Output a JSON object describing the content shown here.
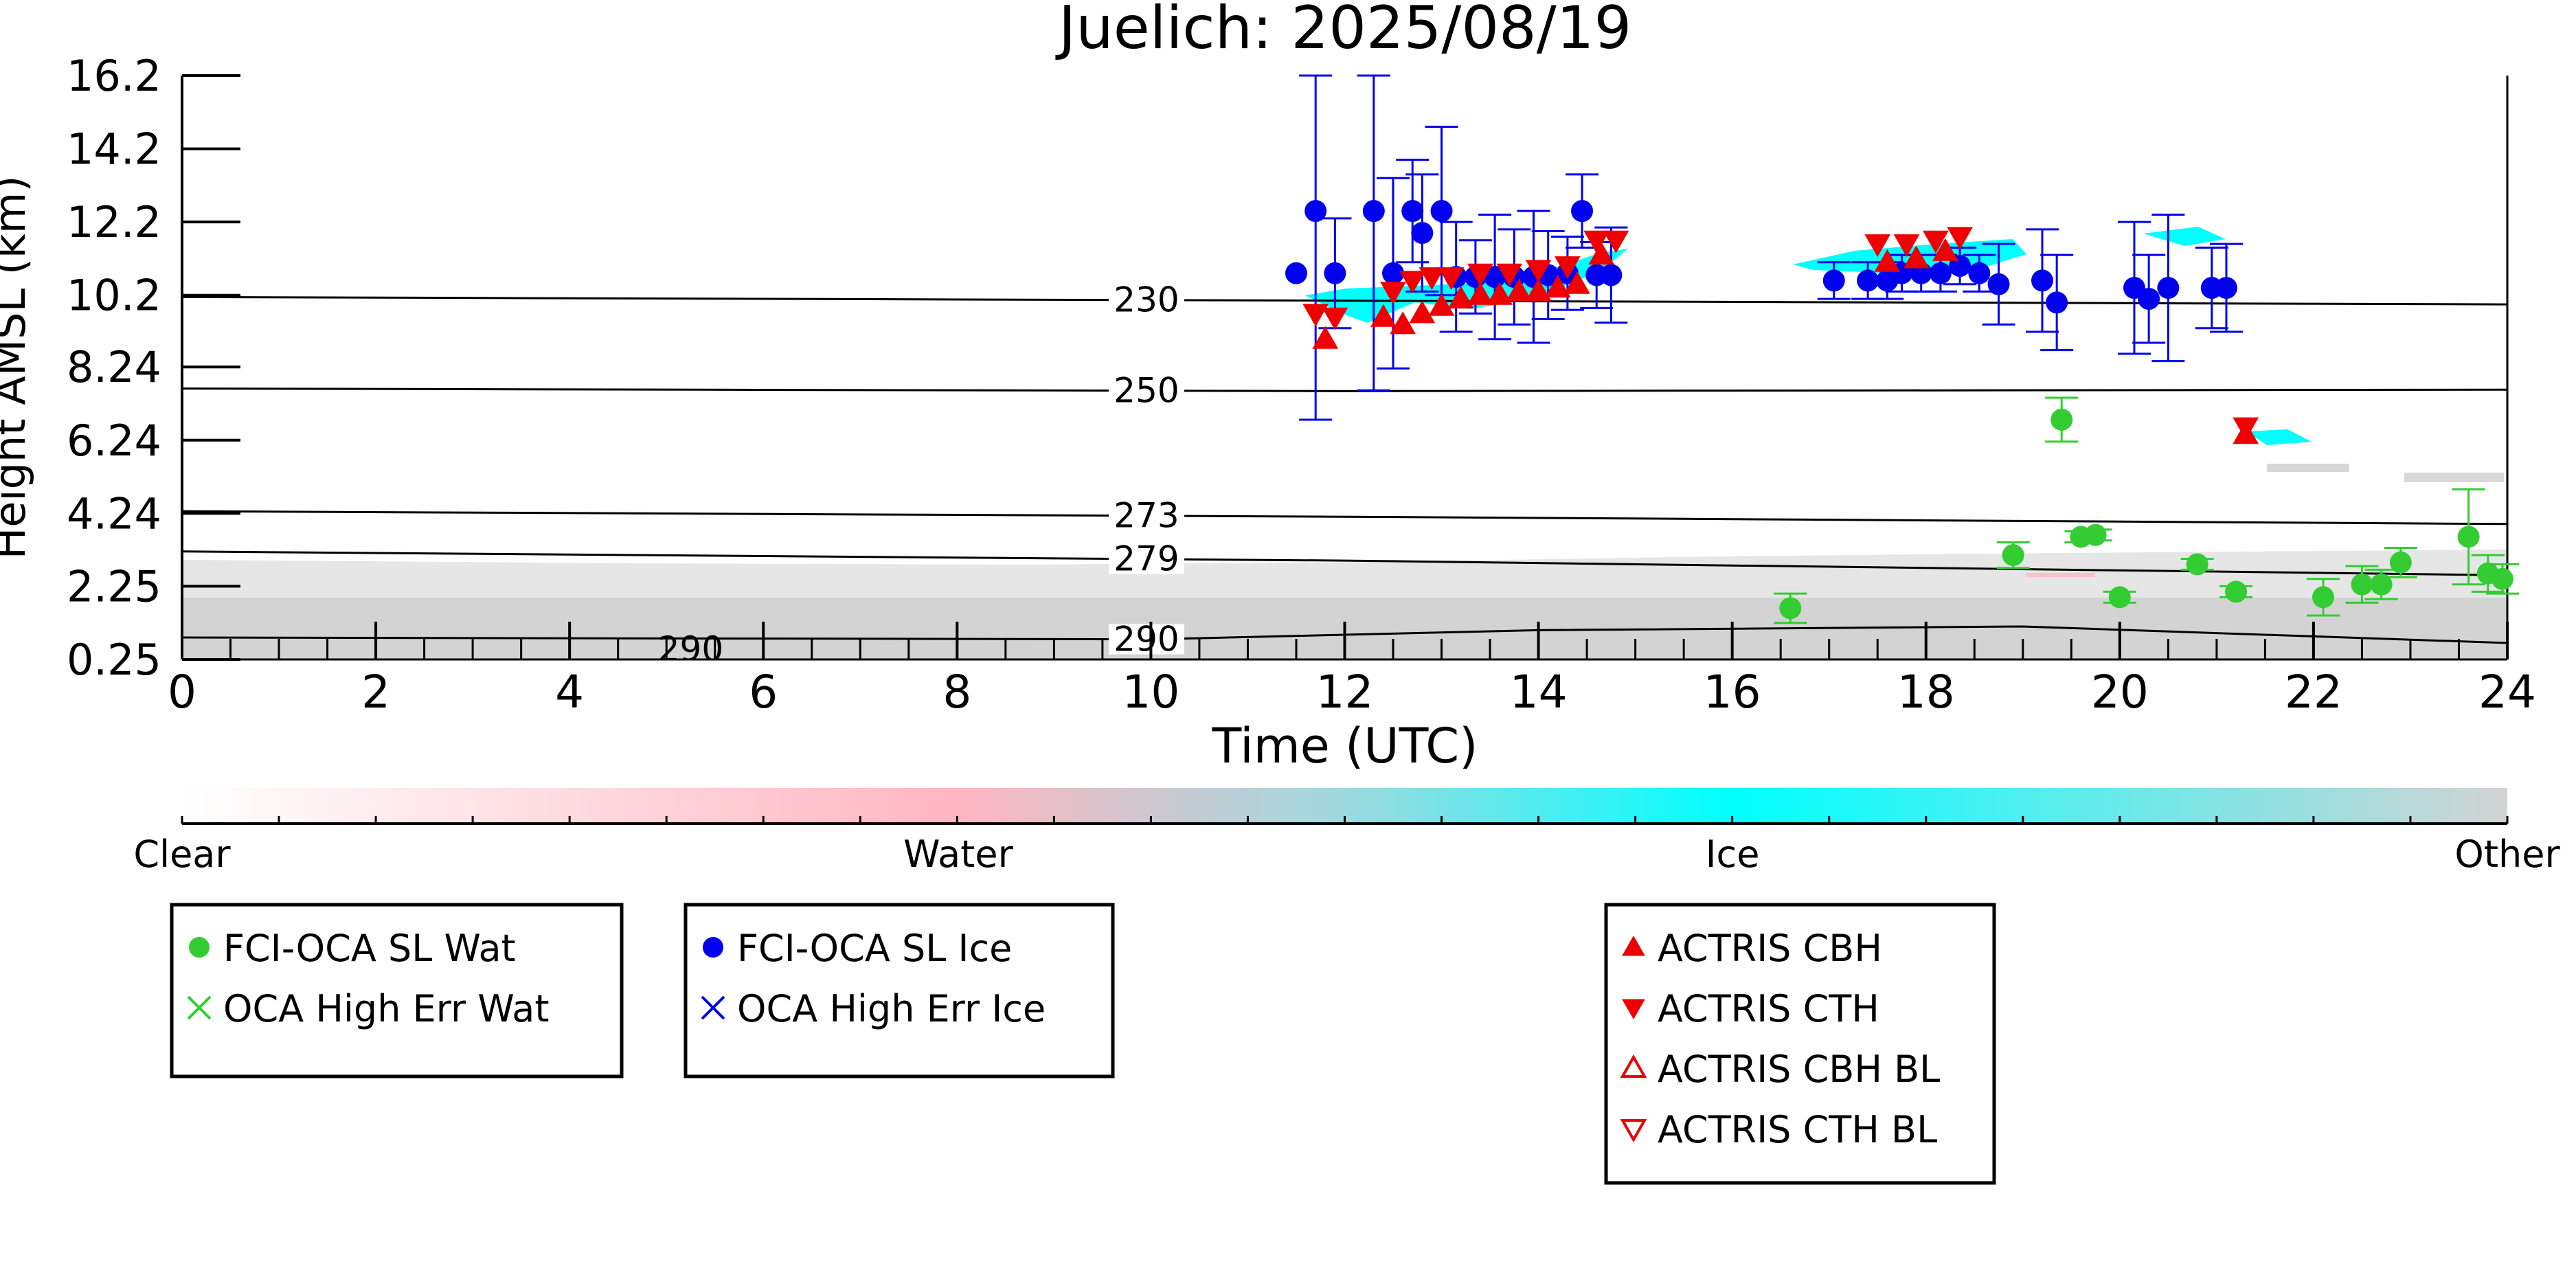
{
  "chart_data": {
    "type": "scatter",
    "title": "Juelich: 2025/08/19",
    "xlabel": "Time (UTC)",
    "ylabel": "Height AMSL (km)",
    "xlim": [
      0,
      24
    ],
    "ylim": [
      0.25,
      16.2
    ],
    "x_ticks": [
      "0",
      "2",
      "4",
      "6",
      "8",
      "10",
      "12",
      "14",
      "16",
      "18",
      "20",
      "22",
      "24"
    ],
    "y_ticks": [
      "0.25",
      "2.25",
      "4.24",
      "6.24",
      "8.24",
      "10.2",
      "12.2",
      "14.2",
      "16.2"
    ],
    "grid": false,
    "colorbar": {
      "labels": [
        "Clear",
        "Water",
        "Ice",
        "Other"
      ],
      "colors": [
        "#ffffff",
        "#ffb6c1",
        "#00ffff",
        "#d3d3d3"
      ]
    },
    "isotherms": [
      {
        "label": "230",
        "points": [
          [
            0,
            10.15
          ],
          [
            12,
            10.05
          ],
          [
            24,
            9.95
          ]
        ]
      },
      {
        "label": "250",
        "points": [
          [
            0,
            7.65
          ],
          [
            12,
            7.58
          ],
          [
            24,
            7.62
          ]
        ]
      },
      {
        "label": "273",
        "points": [
          [
            0,
            4.3
          ],
          [
            12,
            4.15
          ],
          [
            24,
            3.95
          ]
        ]
      },
      {
        "label": "279",
        "points": [
          [
            0,
            3.2
          ],
          [
            12,
            2.95
          ],
          [
            24,
            2.55
          ]
        ]
      },
      {
        "label": "290",
        "points": [
          [
            0,
            0.85
          ],
          [
            10,
            0.8
          ],
          [
            14,
            1.05
          ],
          [
            19,
            1.15
          ],
          [
            24,
            0.7
          ]
        ]
      }
    ],
    "iso_extra_label": "290",
    "series": [
      {
        "name": "FCI-OCA SL Wat",
        "marker": "circle",
        "color": "#33cc33",
        "points": [
          {
            "x": 16.6,
            "y": 1.65,
            "err": 0.4
          },
          {
            "x": 18.9,
            "y": 3.1,
            "err": 0.35
          },
          {
            "x": 19.4,
            "y": 6.8,
            "err": 0.6
          },
          {
            "x": 19.6,
            "y": 3.6,
            "err": 0.15
          },
          {
            "x": 19.75,
            "y": 3.65,
            "err": 0.15
          },
          {
            "x": 20.0,
            "y": 1.95,
            "err": 0.15
          },
          {
            "x": 20.8,
            "y": 2.85,
            "err": 0.15
          },
          {
            "x": 21.2,
            "y": 2.1,
            "err": 0.15
          },
          {
            "x": 22.1,
            "y": 1.95,
            "err": 0.5
          },
          {
            "x": 22.5,
            "y": 2.3,
            "err": 0.5
          },
          {
            "x": 22.7,
            "y": 2.3,
            "err": 0.4
          },
          {
            "x": 22.9,
            "y": 2.9,
            "err": 0.4
          },
          {
            "x": 23.6,
            "y": 3.6,
            "err": 1.3
          },
          {
            "x": 23.8,
            "y": 2.6,
            "err": 0.5
          },
          {
            "x": 23.95,
            "y": 2.45,
            "err": 0.4
          }
        ]
      },
      {
        "name": "OCA High Err Wat",
        "marker": "x",
        "color": "#33cc33",
        "points": []
      },
      {
        "name": "FCI-OCA SL Ice",
        "marker": "circle",
        "color": "#0000ee",
        "points": [
          {
            "x": 11.5,
            "y": 10.8,
            "err": 0.0
          },
          {
            "x": 11.7,
            "y": 12.5,
            "err": 5.7
          },
          {
            "x": 11.9,
            "y": 10.8,
            "err": 1.5
          },
          {
            "x": 12.3,
            "y": 12.5,
            "err": 4.9
          },
          {
            "x": 12.5,
            "y": 10.8,
            "err": 2.6
          },
          {
            "x": 12.7,
            "y": 12.5,
            "err": 1.4
          },
          {
            "x": 12.8,
            "y": 11.9,
            "err": 1.6
          },
          {
            "x": 13.0,
            "y": 12.5,
            "err": 2.3
          },
          {
            "x": 13.15,
            "y": 10.7,
            "err": 1.5
          },
          {
            "x": 13.35,
            "y": 10.7,
            "err": 1.0
          },
          {
            "x": 13.55,
            "y": 10.7,
            "err": 1.7
          },
          {
            "x": 13.75,
            "y": 10.7,
            "err": 1.3
          },
          {
            "x": 13.95,
            "y": 10.7,
            "err": 1.8
          },
          {
            "x": 14.1,
            "y": 10.75,
            "err": 1.2
          },
          {
            "x": 14.3,
            "y": 10.8,
            "err": 1.0
          },
          {
            "x": 14.45,
            "y": 12.5,
            "err": 1.0
          },
          {
            "x": 14.6,
            "y": 10.75,
            "err": 0.9
          },
          {
            "x": 14.75,
            "y": 10.75,
            "err": 1.3
          },
          {
            "x": 17.05,
            "y": 10.6,
            "err": 0.5
          },
          {
            "x": 17.4,
            "y": 10.6,
            "err": 0.5
          },
          {
            "x": 17.6,
            "y": 10.6,
            "err": 0.5
          },
          {
            "x": 17.75,
            "y": 10.8,
            "err": 0.5
          },
          {
            "x": 17.95,
            "y": 10.8,
            "err": 0.5
          },
          {
            "x": 18.15,
            "y": 10.8,
            "err": 0.5
          },
          {
            "x": 18.35,
            "y": 11.0,
            "err": 0.5
          },
          {
            "x": 18.55,
            "y": 10.8,
            "err": 0.5
          },
          {
            "x": 18.75,
            "y": 10.5,
            "err": 1.1
          },
          {
            "x": 19.2,
            "y": 10.6,
            "err": 1.4
          },
          {
            "x": 19.35,
            "y": 10.0,
            "err": 1.3
          },
          {
            "x": 20.15,
            "y": 10.4,
            "err": 1.8
          },
          {
            "x": 20.3,
            "y": 10.1,
            "err": 1.2
          },
          {
            "x": 20.5,
            "y": 10.4,
            "err": 2.0
          },
          {
            "x": 20.95,
            "y": 10.4,
            "err": 1.1
          },
          {
            "x": 21.1,
            "y": 10.4,
            "err": 1.2
          }
        ]
      },
      {
        "name": "OCA High Err Ice",
        "marker": "x",
        "color": "#0000ee",
        "points": []
      },
      {
        "name": "ACTRIS CBH",
        "marker": "triangle-up",
        "color": "#ee0000",
        "points": [
          {
            "x": 11.8,
            "y": 9.0
          },
          {
            "x": 12.4,
            "y": 9.6
          },
          {
            "x": 12.6,
            "y": 9.4
          },
          {
            "x": 12.8,
            "y": 9.7
          },
          {
            "x": 13.0,
            "y": 9.9
          },
          {
            "x": 13.2,
            "y": 10.1
          },
          {
            "x": 13.4,
            "y": 10.2
          },
          {
            "x": 13.6,
            "y": 10.2
          },
          {
            "x": 13.8,
            "y": 10.3
          },
          {
            "x": 14.0,
            "y": 10.3
          },
          {
            "x": 14.2,
            "y": 10.4
          },
          {
            "x": 14.4,
            "y": 10.5
          },
          {
            "x": 14.65,
            "y": 11.3
          },
          {
            "x": 17.6,
            "y": 11.1
          },
          {
            "x": 17.9,
            "y": 11.2
          },
          {
            "x": 18.2,
            "y": 11.4
          },
          {
            "x": 21.3,
            "y": 6.4
          }
        ]
      },
      {
        "name": "ACTRIS CTH",
        "marker": "triangle-down",
        "color": "#ee0000",
        "points": [
          {
            "x": 11.7,
            "y": 9.7
          },
          {
            "x": 11.9,
            "y": 9.6
          },
          {
            "x": 12.5,
            "y": 10.3
          },
          {
            "x": 12.7,
            "y": 10.6
          },
          {
            "x": 12.9,
            "y": 10.7
          },
          {
            "x": 13.1,
            "y": 10.7
          },
          {
            "x": 13.4,
            "y": 10.8
          },
          {
            "x": 13.7,
            "y": 10.8
          },
          {
            "x": 14.0,
            "y": 10.9
          },
          {
            "x": 14.3,
            "y": 11.0
          },
          {
            "x": 14.6,
            "y": 11.7
          },
          {
            "x": 14.8,
            "y": 11.7
          },
          {
            "x": 17.5,
            "y": 11.6
          },
          {
            "x": 17.8,
            "y": 11.6
          },
          {
            "x": 18.1,
            "y": 11.7
          },
          {
            "x": 18.35,
            "y": 11.8
          },
          {
            "x": 21.3,
            "y": 6.6
          }
        ]
      },
      {
        "name": "ACTRIS CBH BL",
        "marker": "triangle-up-open",
        "color": "#ee0000",
        "points": []
      },
      {
        "name": "ACTRIS CTH BL",
        "marker": "triangle-down-open",
        "color": "#ee0000",
        "points": []
      }
    ],
    "legend_groups": [
      [
        "FCI-OCA SL Wat",
        "OCA High Err Wat"
      ],
      [
        "FCI-OCA SL Ice",
        "OCA High Err Ice"
      ],
      [
        "ACTRIS CBH",
        "ACTRIS CTH",
        "ACTRIS CBH BL",
        "ACTRIS CTH BL"
      ]
    ]
  }
}
